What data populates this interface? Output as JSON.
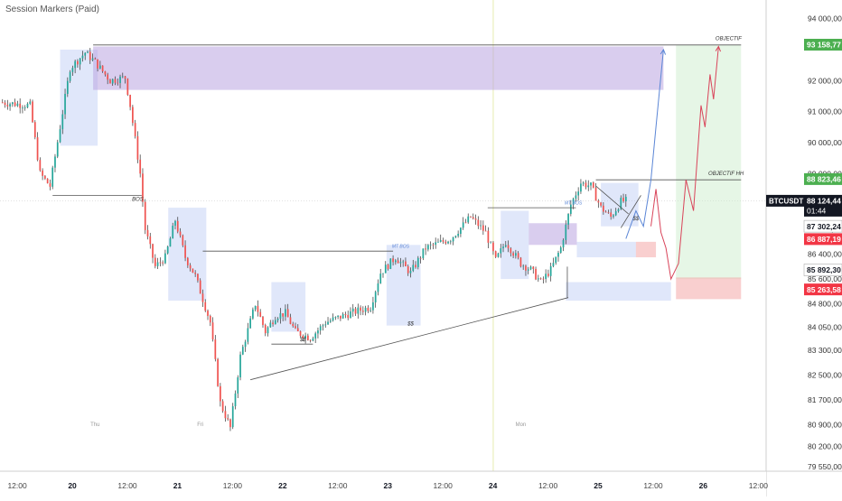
{
  "indicator": {
    "name": "Session Markers (Paid)"
  },
  "symbol": {
    "ticker": "BTCUSDT",
    "price": "88 124,44",
    "countdown": "01:44"
  },
  "colors": {
    "up": "#26a69a",
    "down": "#ef5350",
    "wick": "#333333",
    "zone_blue": "#9fb3f0",
    "zone_purple": "#b9a4e0",
    "zone_green": "#c8ebc8",
    "zone_red": "#f4a7a7",
    "projection_blue": "#5b86d6",
    "projection_red": "#d9445a",
    "badge_green": "#4caf50",
    "badge_red": "#f23645",
    "badge_black": "#131722"
  },
  "chart_data": {
    "type": "candlestick",
    "y_axis": {
      "range": [
        79400,
        94600
      ],
      "ticks": [
        "94 000,00",
        "93 200,00",
        "92 000,00",
        "91 000,00",
        "90 000,00",
        "89 000,00",
        "87 200,00",
        "86 400,00",
        "85 600,00",
        "84 800,00",
        "84 050,00",
        "83 300,00",
        "82 500,00",
        "81 700,00",
        "80 900,00",
        "80 200,00",
        "79 550,00"
      ],
      "tick_values": [
        94000,
        93200,
        92000,
        91000,
        90000,
        89000,
        87200,
        86400,
        85600,
        84800,
        84050,
        83300,
        82500,
        81700,
        80900,
        80200,
        79550
      ]
    },
    "x_axis": {
      "range": [
        0,
        148
      ],
      "labels": [
        "12:00",
        "20",
        "12:00",
        "21",
        "12:00",
        "22",
        "12:00",
        "23",
        "12:00",
        "24",
        "12:00",
        "25",
        "12:00",
        "26",
        "12:00"
      ],
      "label_positions": [
        2,
        13,
        24,
        34,
        45,
        55,
        66,
        76,
        87,
        97,
        108,
        118,
        129,
        139,
        150
      ]
    },
    "session_labels": [
      {
        "text": "Thu",
        "x": 19
      },
      {
        "text": "Fri",
        "x": 40
      },
      {
        "text": "Mon",
        "x": 104
      }
    ],
    "price_badges": [
      {
        "text": "93 158,77",
        "value": 93158.77,
        "style": "green"
      },
      {
        "text": "88 823,46",
        "value": 88823.46,
        "style": "green"
      },
      {
        "text": "87 302,24",
        "value": 87302.24,
        "style": "white"
      },
      {
        "text": "86 887,19",
        "value": 86887.19,
        "style": "red"
      },
      {
        "text": "85 892,30",
        "value": 85892.3,
        "style": "white"
      },
      {
        "text": "85 263,58",
        "value": 85263.58,
        "style": "red"
      }
    ],
    "anchors": [
      [
        0,
        91300
      ],
      [
        6,
        91200
      ],
      [
        8,
        89000
      ],
      [
        10,
        88600
      ],
      [
        12,
        90500
      ],
      [
        14,
        92400
      ],
      [
        17,
        92900
      ],
      [
        19,
        92600
      ],
      [
        22,
        92000
      ],
      [
        25,
        92100
      ],
      [
        26,
        91200
      ],
      [
        28,
        89000
      ],
      [
        29,
        87200
      ],
      [
        31,
        86000
      ],
      [
        33,
        86300
      ],
      [
        35,
        87500
      ],
      [
        37,
        86300
      ],
      [
        39,
        85700
      ],
      [
        42,
        84200
      ],
      [
        44,
        81600
      ],
      [
        46,
        80800
      ],
      [
        48,
        83100
      ],
      [
        51,
        84800
      ],
      [
        53,
        83900
      ],
      [
        55,
        84400
      ],
      [
        57,
        84500
      ],
      [
        59,
        83900
      ],
      [
        62,
        83700
      ],
      [
        65,
        84200
      ],
      [
        70,
        84500
      ],
      [
        74,
        84700
      ],
      [
        76,
        85800
      ],
      [
        79,
        86300
      ],
      [
        82,
        85800
      ],
      [
        85,
        86600
      ],
      [
        90,
        86900
      ],
      [
        94,
        87600
      ],
      [
        97,
        87100
      ],
      [
        99,
        86200
      ],
      [
        101,
        86800
      ],
      [
        104,
        86100
      ],
      [
        106,
        85900
      ],
      [
        108,
        85500
      ],
      [
        110,
        85900
      ],
      [
        112,
        86600
      ],
      [
        114,
        88000
      ],
      [
        116,
        88700
      ],
      [
        118,
        88600
      ],
      [
        120,
        87900
      ],
      [
        122,
        87600
      ],
      [
        124,
        88100
      ],
      [
        125,
        88124
      ]
    ],
    "zones": [
      {
        "color": "blue",
        "x0": 12,
        "x1": 19.5,
        "y0": 89900,
        "y1": 93000
      },
      {
        "color": "purple",
        "x0": 18.6,
        "x1": 132.5,
        "y0": 91700,
        "y1": 93100
      },
      {
        "color": "blue",
        "x0": 33.6,
        "x1": 41.2,
        "y0": 84900,
        "y1": 87900
      },
      {
        "color": "blue",
        "x0": 54.2,
        "x1": 61,
        "y0": 83900,
        "y1": 85500
      },
      {
        "color": "blue",
        "x0": 77.2,
        "x1": 84,
        "y0": 84100,
        "y1": 86700
      },
      {
        "color": "blue",
        "x0": 100,
        "x1": 105.6,
        "y0": 85600,
        "y1": 87800
      },
      {
        "color": "purple",
        "x0": 105.6,
        "x1": 115.2,
        "y0": 86700,
        "y1": 87400
      },
      {
        "color": "blue",
        "x0": 115.2,
        "x1": 127,
        "y0": 86300,
        "y1": 86800
      },
      {
        "color": "red",
        "x0": 127,
        "x1": 131,
        "y0": 86300,
        "y1": 86800
      },
      {
        "color": "blue",
        "x0": 120,
        "x1": 127.5,
        "y0": 87300,
        "y1": 88700
      },
      {
        "color": "blue",
        "x0": 113,
        "x1": 134,
        "y0": 84900,
        "y1": 85500
      },
      {
        "color": "green",
        "x0": 135,
        "x1": 148,
        "y0": 85600,
        "y1": 93150
      },
      {
        "color": "red",
        "x0": 135,
        "x1": 148,
        "y0": 84950,
        "y1": 85650
      }
    ],
    "lines": [
      {
        "points": [
          [
            18.6,
            93150
          ],
          [
            148,
            93150
          ]
        ],
        "color": "#555"
      },
      {
        "points": [
          [
            10.5,
            88300
          ],
          [
            28.3,
            88300
          ]
        ],
        "color": "#555"
      },
      {
        "points": [
          [
            40.5,
            86500
          ],
          [
            78.5,
            86500
          ]
        ],
        "color": "#555"
      },
      {
        "points": [
          [
            54.2,
            83500
          ],
          [
            62.5,
            83500
          ]
        ],
        "color": "#555"
      },
      {
        "points": [
          [
            97.4,
            87900
          ],
          [
            115,
            87900
          ]
        ],
        "color": "#555"
      },
      {
        "points": [
          [
            50,
            82350
          ],
          [
            113.5,
            85000
          ]
        ],
        "color": "#555"
      },
      {
        "points": [
          [
            113.3,
            86000
          ],
          [
            113.3,
            85000
          ]
        ],
        "color": "#555"
      },
      {
        "points": [
          [
            119,
            88800
          ],
          [
            148,
            88800
          ]
        ],
        "color": "#555"
      },
      {
        "points": [
          [
            124,
            87250
          ],
          [
            128,
            88300
          ]
        ],
        "color": "#555"
      },
      {
        "points": [
          [
            119,
            88600
          ],
          [
            125.5,
            87700
          ]
        ],
        "color": "#555"
      }
    ],
    "projections": [
      {
        "color": "blue",
        "points": [
          [
            125,
            86900
          ],
          [
            127,
            87800
          ],
          [
            128.5,
            87300
          ],
          [
            130,
            88800
          ],
          [
            131,
            90500
          ],
          [
            132.5,
            93000
          ]
        ]
      },
      {
        "color": "red",
        "points": [
          [
            130,
            87300
          ],
          [
            131,
            88500
          ],
          [
            132,
            87100
          ],
          [
            133,
            86600
          ],
          [
            134,
            85600
          ],
          [
            135.5,
            86100
          ],
          [
            137,
            88800
          ],
          [
            138.5,
            87800
          ],
          [
            140,
            91200
          ],
          [
            140.8,
            90500
          ],
          [
            141.8,
            92200
          ],
          [
            142.5,
            91400
          ],
          [
            143.5,
            93100
          ]
        ]
      }
    ],
    "text_annotations": [
      {
        "text": "OBJECTIF",
        "x": 145.5,
        "y": 93300,
        "color": "#333",
        "size": 6
      },
      {
        "text": "OBJECTIF HH",
        "x": 145,
        "y": 88950,
        "color": "#333",
        "size": 6
      },
      {
        "text": "BOS",
        "x": 27.5,
        "y": 88120,
        "color": "#333",
        "size": 6
      },
      {
        "text": "MT BOS",
        "x": 80,
        "y": 86600,
        "color": "#5b86d6",
        "size": 5
      },
      {
        "text": "MT BOS",
        "x": 114.5,
        "y": 88000,
        "color": "#5b86d6",
        "size": 5
      },
      {
        "text": "$$",
        "x": 60.5,
        "y": 83600,
        "color": "#333",
        "size": 6
      },
      {
        "text": "$$",
        "x": 82,
        "y": 84100,
        "color": "#333",
        "size": 6
      },
      {
        "text": "$$",
        "x": 127,
        "y": 87500,
        "color": "#333",
        "size": 6
      }
    ],
    "vertical_markers": [
      {
        "x": 98.5,
        "color": "#e6ebb0"
      }
    ]
  }
}
